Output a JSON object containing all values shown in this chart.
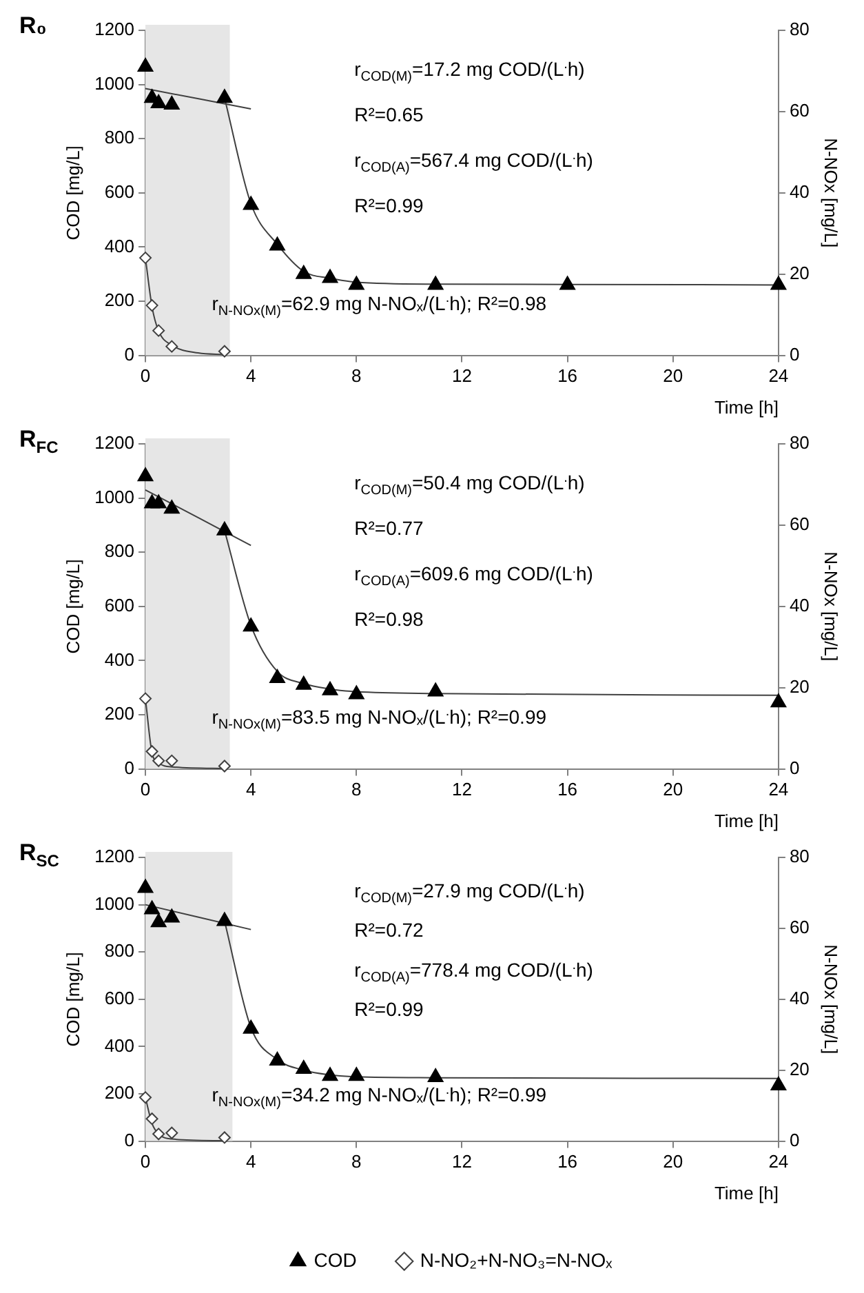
{
  "chart_data": [
    {
      "type": "scatter",
      "title": "R₀",
      "xlabel": "Time [h]",
      "ylabel": "COD [mg/L]",
      "y2label": "N-NOx [mg/L]",
      "xlim": [
        0,
        24
      ],
      "xticks": [
        0,
        4,
        8,
        12,
        16,
        20,
        24
      ],
      "ylim": [
        0,
        1200
      ],
      "yticks": [
        0,
        200,
        400,
        600,
        800,
        1000,
        1200
      ],
      "y2lim": [
        0,
        80
      ],
      "y2ticks": [
        0,
        20,
        40,
        60,
        80
      ],
      "grid": false,
      "legend": false,
      "bands": [
        {
          "axis": "x",
          "from": 0,
          "to": 3.2,
          "color": "#e6e6e6"
        }
      ],
      "annotations": [
        "r$_{COD(M)}$=17.2 mg COD/(L$^{.}$h)",
        "R²=0.65",
        "r$_{COD(A)}$=567.4 mg COD/(L$^{.}$h)",
        "R²=0.99",
        "r$_{N-NOx(M)}$=62.9 mg N-NOₓ/(L$^{.}$h); R²=0.98"
      ],
      "series": [
        {
          "type": "line",
          "marker": "none",
          "color": "#404040",
          "x": [
            0,
            4
          ],
          "values": [
            985,
            910
          ]
        },
        {
          "type": "line",
          "marker": "none",
          "color": "#404040",
          "x": [
            3,
            4,
            5,
            6,
            7,
            8,
            11,
            16,
            24
          ],
          "values": [
            950,
            560,
            410,
            310,
            285,
            270,
            263,
            262,
            260
          ]
        },
        {
          "type": "line",
          "marker": "none",
          "color": "#404040",
          "axis": "y2",
          "x": [
            0,
            0.25,
            0.5,
            1,
            2,
            3
          ],
          "values": [
            24,
            12,
            6,
            2.5,
            0.6,
            0.2
          ]
        },
        {
          "type": "scatter",
          "marker": "triangle",
          "color": "#000000",
          "x": [
            0,
            0.25,
            0.5,
            1,
            3,
            4,
            5,
            6,
            7,
            8,
            11,
            16,
            24
          ],
          "values": [
            1065,
            950,
            930,
            925,
            950,
            555,
            405,
            300,
            285,
            260,
            260,
            260,
            260
          ]
        },
        {
          "type": "scatter",
          "marker": "diamond",
          "color": "#404040",
          "axis": "y2",
          "x": [
            0,
            0.25,
            0.5,
            1,
            3
          ],
          "values": [
            24,
            12.3,
            6.1,
            2.2,
            1
          ]
        }
      ]
    },
    {
      "type": "scatter",
      "title": "R$_{FC}$",
      "xlabel": "Time [h]",
      "ylabel": "COD [mg/L]",
      "y2label": "N-NOx [mg/L]",
      "xlim": [
        0,
        24
      ],
      "xticks": [
        0,
        4,
        8,
        12,
        16,
        20,
        24
      ],
      "ylim": [
        0,
        1200
      ],
      "yticks": [
        0,
        200,
        400,
        600,
        800,
        1000,
        1200
      ],
      "y2lim": [
        0,
        80
      ],
      "y2ticks": [
        0,
        20,
        40,
        60,
        80
      ],
      "grid": false,
      "legend": false,
      "bands": [
        {
          "axis": "x",
          "from": 0,
          "to": 3.2,
          "color": "#e6e6e6"
        }
      ],
      "annotations": [
        "r$_{COD(M)}$=50.4 mg COD/(L$^{.}$h)",
        "R²=0.77",
        "r$_{COD(A)}$=609.6 mg COD/(L$^{.}$h)",
        "R²=0.98",
        "r$_{N-NOx(M)}$=83.5 mg N-NOₓ/(L$^{.}$h); R²=0.99"
      ],
      "series": [
        {
          "type": "line",
          "marker": "none",
          "color": "#404040",
          "x": [
            0,
            4
          ],
          "values": [
            1030,
            825
          ]
        },
        {
          "type": "line",
          "marker": "none",
          "color": "#404040",
          "x": [
            3,
            4,
            5,
            6,
            7,
            8,
            11,
            24
          ],
          "values": [
            880,
            530,
            360,
            315,
            295,
            285,
            278,
            272
          ]
        },
        {
          "type": "line",
          "marker": "none",
          "color": "#404040",
          "axis": "y2",
          "x": [
            0,
            0.25,
            0.5,
            1,
            3
          ],
          "values": [
            17.3,
            4,
            1.5,
            0.5,
            0.1
          ]
        },
        {
          "type": "scatter",
          "marker": "triangle",
          "color": "#000000",
          "x": [
            0,
            0.25,
            0.5,
            1,
            3,
            4,
            5,
            6,
            7,
            8,
            11,
            24
          ],
          "values": [
            1080,
            980,
            980,
            960,
            880,
            525,
            335,
            310,
            290,
            275,
            285,
            245
          ]
        },
        {
          "type": "scatter",
          "marker": "diamond",
          "color": "#404040",
          "axis": "y2",
          "x": [
            0,
            0.25,
            0.5,
            1,
            3
          ],
          "values": [
            17.3,
            4.3,
            2,
            2,
            0.7
          ]
        }
      ]
    },
    {
      "type": "scatter",
      "title": "R$_{SC}$",
      "xlabel": "Time [h]",
      "ylabel": "COD [mg/L]",
      "y2label": "N-NOx [mg/L]",
      "xlim": [
        0,
        24
      ],
      "xticks": [
        0,
        4,
        8,
        12,
        16,
        20,
        24
      ],
      "ylim": [
        0,
        1200
      ],
      "yticks": [
        0,
        200,
        400,
        600,
        800,
        1000,
        1200
      ],
      "y2lim": [
        0,
        80
      ],
      "y2ticks": [
        0,
        20,
        40,
        60,
        80
      ],
      "grid": false,
      "legend": "bottom",
      "bands": [
        {
          "axis": "x",
          "from": 0,
          "to": 3.3,
          "color": "#e6e6e6"
        }
      ],
      "annotations": [
        "r$_{COD(M)}$=27.9 mg COD/(L$^{.}$h)",
        "R²=0.72",
        "r$_{COD(A)}$=778.4 mg COD/(L$^{.}$h)",
        "R²=0.99",
        "r$_{N-NOx(M)}$=34.2 mg N-NOₓ/(L$^{.}$h); R²=0.99"
      ],
      "series": [
        {
          "type": "line",
          "marker": "none",
          "color": "#404040",
          "x": [
            0,
            4
          ],
          "values": [
            1000,
            895
          ]
        },
        {
          "type": "line",
          "marker": "none",
          "color": "#404040",
          "x": [
            3,
            4,
            5,
            6,
            7,
            8,
            11,
            24
          ],
          "values": [
            930,
            480,
            345,
            300,
            280,
            272,
            268,
            265
          ]
        },
        {
          "type": "line",
          "marker": "none",
          "color": "#404040",
          "axis": "y2",
          "x": [
            0,
            0.25,
            0.5,
            1,
            3
          ],
          "values": [
            12.3,
            5,
            2,
            0.6,
            0.1
          ]
        },
        {
          "type": "scatter",
          "name": "COD",
          "marker": "triangle",
          "color": "#000000",
          "x": [
            0,
            0.25,
            0.5,
            1,
            3,
            4,
            5,
            6,
            7,
            8,
            11,
            24
          ],
          "values": [
            1070,
            980,
            925,
            945,
            930,
            475,
            340,
            305,
            275,
            275,
            270,
            235
          ]
        },
        {
          "type": "scatter",
          "name": "N-NO₂+N-NO₃=N-NOₓ",
          "marker": "diamond",
          "color": "#404040",
          "axis": "y2",
          "x": [
            0,
            0.25,
            0.5,
            1,
            3
          ],
          "values": [
            12.3,
            6.3,
            2,
            2.3,
            1
          ]
        }
      ]
    }
  ]
}
